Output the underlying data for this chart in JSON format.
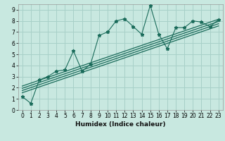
{
  "title": "",
  "xlabel": "Humidex (Indice chaleur)",
  "bg_color": "#c8e8e0",
  "grid_color": "#a8d0c8",
  "line_color": "#1a6b5a",
  "xlim": [
    -0.5,
    23.5
  ],
  "ylim": [
    0,
    9.5
  ],
  "xticks": [
    0,
    1,
    2,
    3,
    4,
    5,
    6,
    7,
    8,
    9,
    10,
    11,
    12,
    13,
    14,
    15,
    16,
    17,
    18,
    19,
    20,
    21,
    22,
    23
  ],
  "yticks": [
    0,
    1,
    2,
    3,
    4,
    5,
    6,
    7,
    8,
    9
  ],
  "scatter_x": [
    0,
    1,
    2,
    3,
    4,
    5,
    6,
    7,
    8,
    9,
    10,
    11,
    12,
    13,
    14,
    15,
    16,
    17,
    18,
    19,
    20,
    21,
    22,
    23
  ],
  "scatter_y": [
    1.2,
    0.6,
    2.7,
    3.0,
    3.5,
    3.6,
    5.3,
    3.5,
    4.1,
    6.7,
    7.0,
    8.0,
    8.2,
    7.5,
    6.8,
    9.4,
    6.8,
    5.5,
    7.4,
    7.4,
    8.0,
    7.9,
    7.5,
    8.1
  ],
  "reg_lines": [
    {
      "x0": 0,
      "y0": 1.55,
      "x1": 23,
      "y1": 7.55
    },
    {
      "x0": 0,
      "y0": 1.75,
      "x1": 23,
      "y1": 7.75
    },
    {
      "x0": 0,
      "y0": 1.95,
      "x1": 23,
      "y1": 7.95
    },
    {
      "x0": 0,
      "y0": 2.15,
      "x1": 23,
      "y1": 8.15
    }
  ],
  "xlabel_fontsize": 6.5,
  "tick_fontsize": 5.5
}
